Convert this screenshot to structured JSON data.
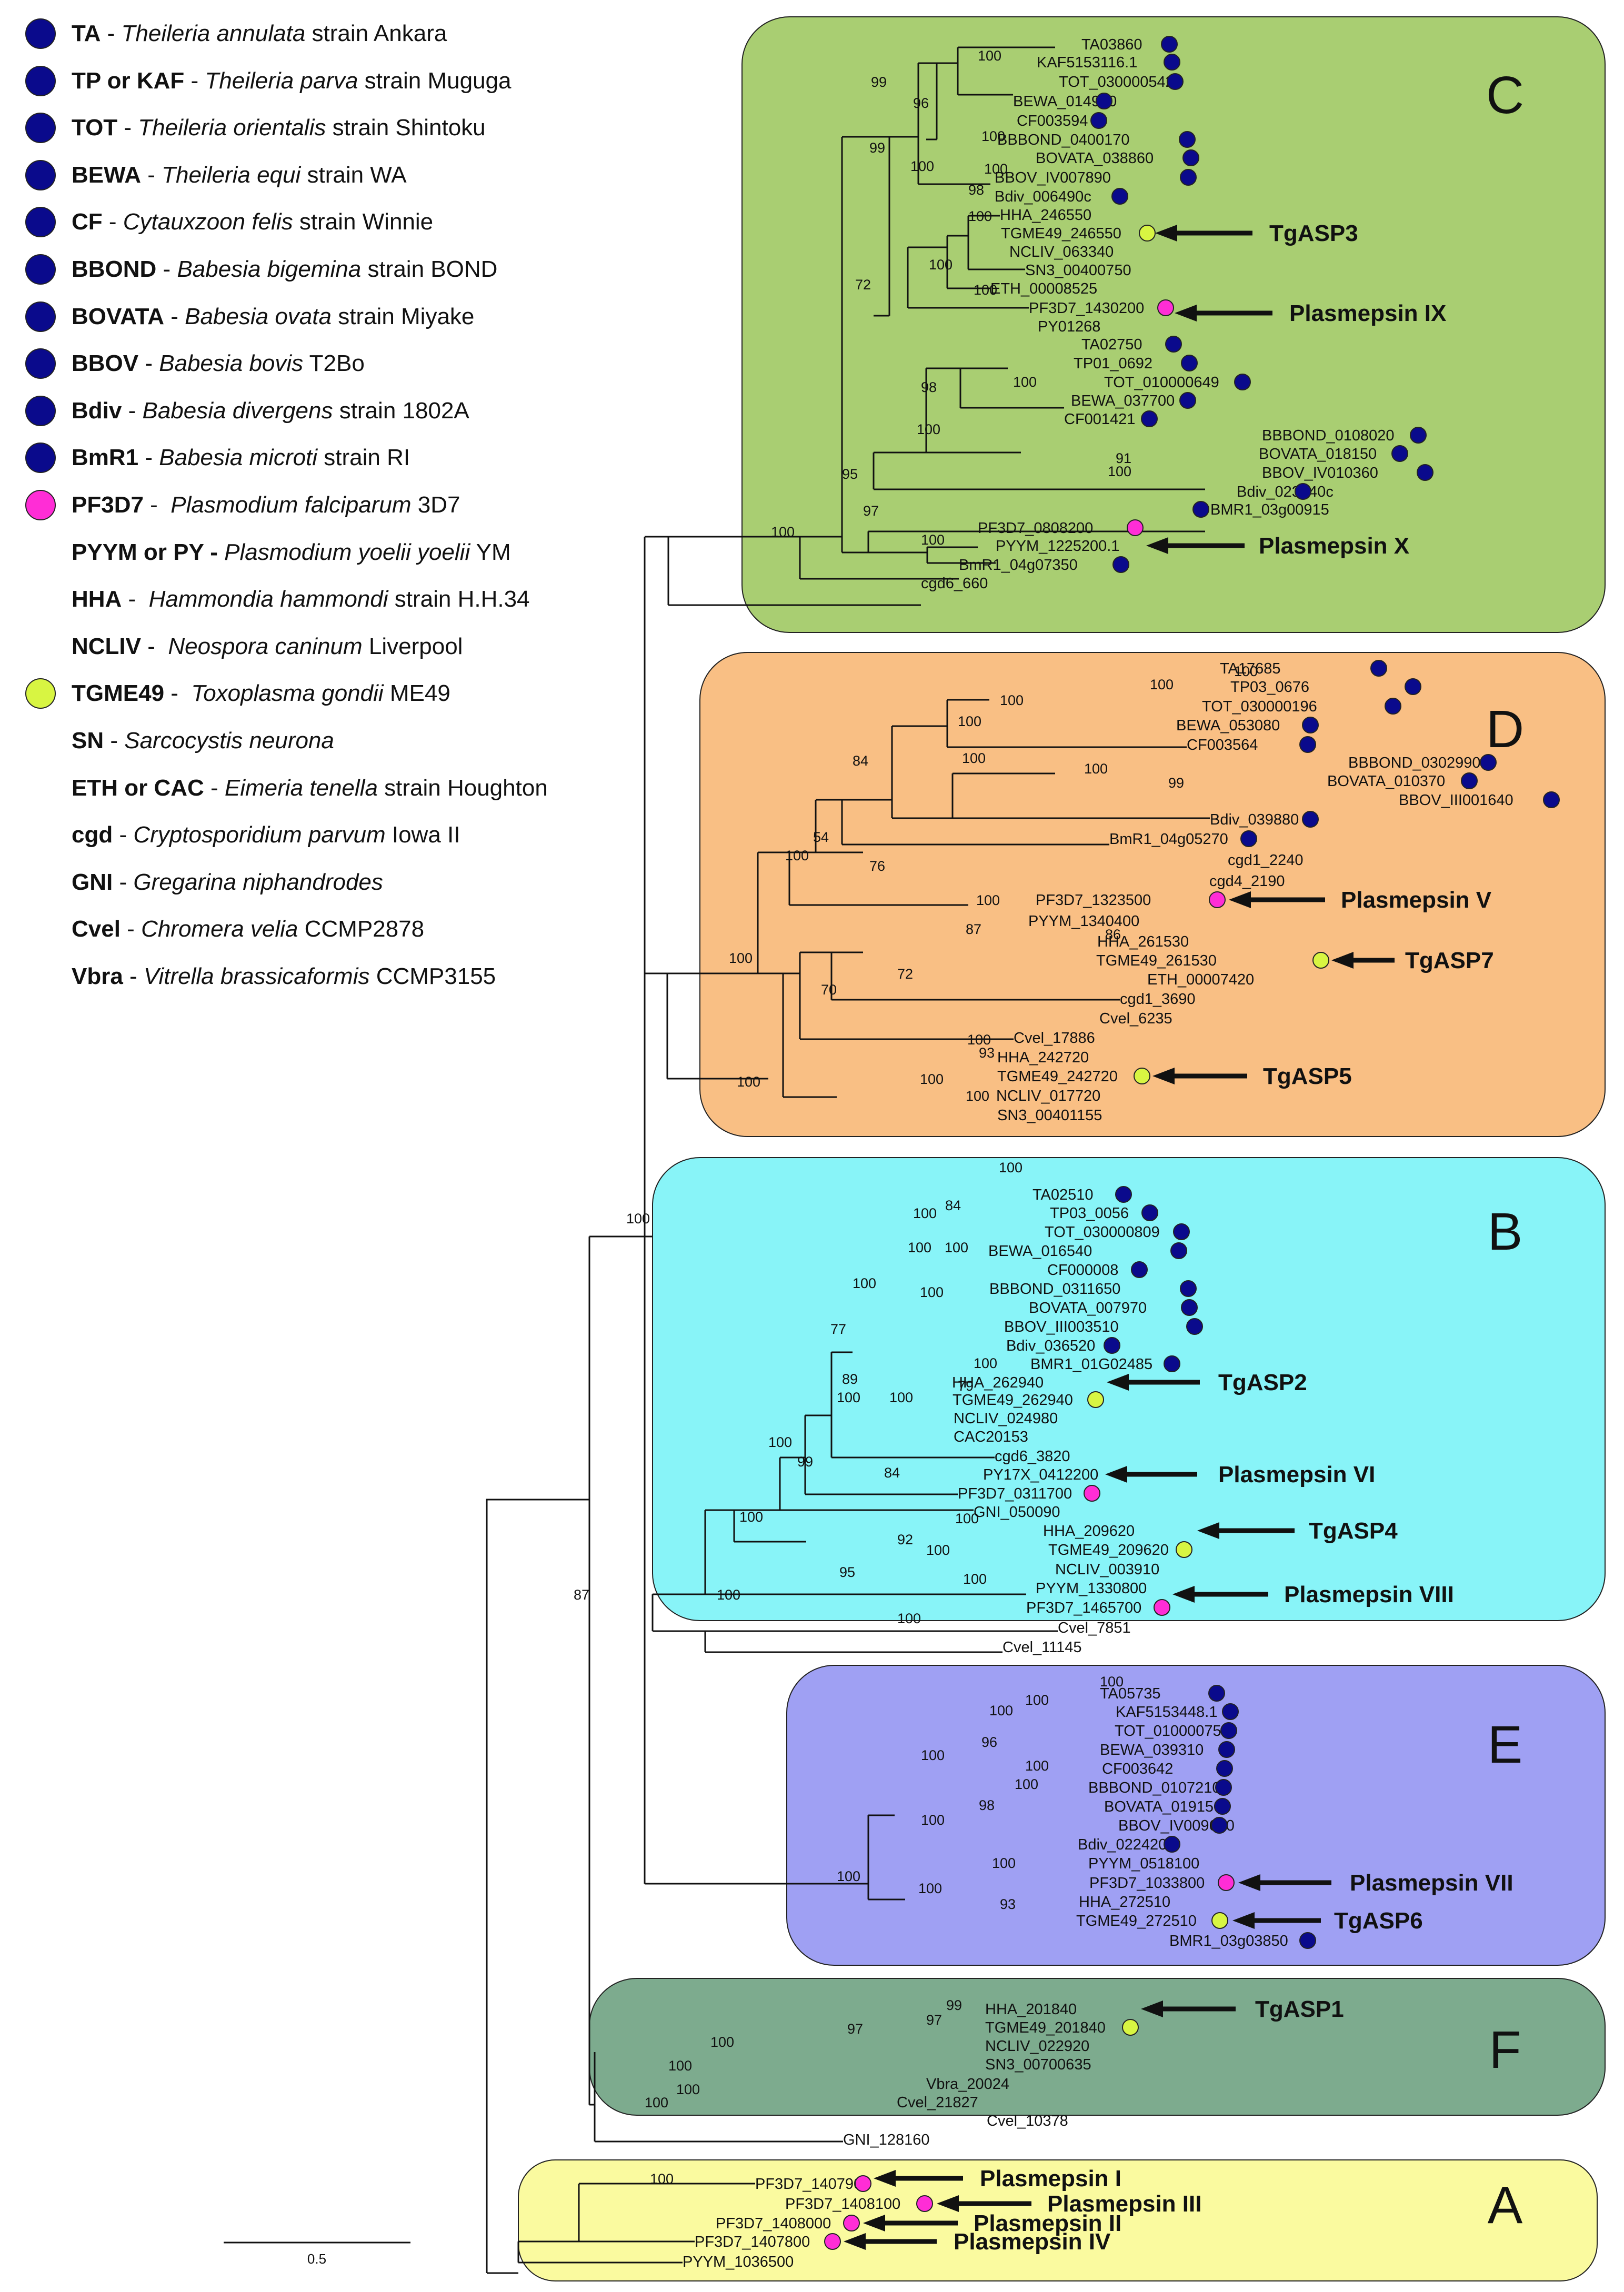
{
  "colors": {
    "navy": "#0a0a8c",
    "magenta": "#ff2dd6",
    "lime": "#d8f542",
    "clade_C": "#a9ce72",
    "clade_D": "#f9bf84",
    "clade_B": "#88f4f8",
    "clade_E": "#9fa0f3",
    "clade_F": "#7dab8e",
    "clade_A": "#fafa9f",
    "line": "#111111"
  },
  "legend": [
    {
      "code": "TA",
      "sep": " - ",
      "species": "Theileria annulata",
      "strain": " strain Ankara",
      "dot": "navy"
    },
    {
      "code": "TP or KAF",
      "sep": " - ",
      "species": "Theileria parva",
      "strain": " strain Muguga",
      "dot": "navy"
    },
    {
      "code": "TOT",
      "sep": " - ",
      "species": "Theileria orientalis",
      "strain": " strain Shintoku",
      "dot": "navy"
    },
    {
      "code": "BEWA",
      "sep": " - ",
      "species": "Theileria equi",
      "strain": " strain WA",
      "dot": "navy"
    },
    {
      "code": "CF",
      "sep": " - ",
      "species": "Cytauxzoon felis",
      "strain": " strain Winnie",
      "dot": "navy"
    },
    {
      "code": "BBOND",
      "sep": " - ",
      "species": "Babesia bigemina",
      "strain": " strain BOND",
      "dot": "navy"
    },
    {
      "code": "BOVATA",
      "sep": " - ",
      "species": "Babesia ovata",
      "strain": " strain Miyake",
      "dot": "navy"
    },
    {
      "code": "BBOV",
      "sep": " - ",
      "species": "Babesia bovis",
      "strain": " T2Bo",
      "dot": "navy"
    },
    {
      "code": "Bdiv",
      "sep": " - ",
      "species": "Babesia divergens",
      "strain": " strain 1802A",
      "dot": "navy"
    },
    {
      "code": "BmR1",
      "sep": " - ",
      "species": "Babesia microti",
      "strain": " strain RI",
      "dot": "navy"
    },
    {
      "code": "PF3D7",
      "sep": " -  ",
      "species": "Plasmodium falciparum",
      "strain": " 3D7",
      "dot": "magenta"
    },
    {
      "code": "PYYM or PY - ",
      "sep": "",
      "species": "Plasmodium yoelii yoelii",
      "strain": " YM",
      "dot": ""
    },
    {
      "code": "HHA",
      "sep": " -  ",
      "species": "Hammondia hammondi",
      "strain": " strain H.H.34",
      "dot": ""
    },
    {
      "code": "NCLIV",
      "sep": " -  ",
      "species": "Neospora caninum",
      "strain": " Liverpool",
      "dot": ""
    },
    {
      "code": "TGME49",
      "sep": " -  ",
      "species": "Toxoplasma gondii",
      "strain": " ME49",
      "dot": "lime"
    },
    {
      "code": "SN",
      "sep": " - ",
      "species": "Sarcocystis neurona",
      "strain": "",
      "dot": ""
    },
    {
      "code": "ETH or CAC",
      "sep": " - ",
      "species": "Eimeria tenella",
      "strain": " strain Houghton",
      "dot": ""
    },
    {
      "code": "cgd",
      "sep": " - ",
      "species": "Cryptosporidium parvum",
      "strain": " Iowa II",
      "dot": ""
    },
    {
      "code": "GNI",
      "sep": " - ",
      "species": "Gregarina niphandrodes",
      "strain": "",
      "dot": ""
    },
    {
      "code": "Cvel",
      "sep": " - ",
      "species": "Chromera velia",
      "strain": " CCMP2878",
      "dot": ""
    },
    {
      "code": "Vbra",
      "sep": " - ",
      "species": "Vitrella brassicaformis",
      "strain": " CCMP3155",
      "dot": ""
    }
  ],
  "clades": [
    {
      "letter": "C",
      "fill": "clade_C"
    },
    {
      "letter": "D",
      "fill": "clade_D"
    },
    {
      "letter": "B",
      "fill": "clade_B"
    },
    {
      "letter": "E",
      "fill": "clade_E"
    },
    {
      "letter": "F",
      "fill": "clade_F"
    },
    {
      "letter": "A",
      "fill": "clade_A"
    }
  ],
  "tips": {
    "C": [
      "TA03860",
      "KAF5153116.1",
      "TOT_030000542",
      "BEWA_014990",
      "CF003594",
      "BBBOND_0400170",
      "BOVATA_038860",
      "BBOV_IV007890",
      "Bdiv_006490c",
      "HHA_246550",
      "TGME49_246550",
      "NCLIV_063340",
      "SN3_00400750",
      "ETH_00008525",
      "PF3D7_1430200",
      "PY01268",
      "TA02750",
      "TP01_0692",
      "TOT_010000649",
      "BEWA_037700",
      "CF001421",
      "BBBOND_0108020",
      "BOVATA_018150",
      "BBOV_IV010360",
      "Bdiv_023140c",
      "BMR1_03g00915",
      "PF3D7_0808200",
      "PYYM_1225200.1",
      "BmR1_04g07350",
      "cgd6_660"
    ],
    "D": [
      "TA17685",
      "TP03_0676",
      "TOT_030000196",
      "BEWA_053080",
      "CF003564",
      "BBBOND_0302990",
      "BOVATA_010370",
      "BBOV_III001640",
      "Bdiv_039880",
      "BmR1_04g05270",
      "cgd1_2240",
      "cgd4_2190",
      "PF3D7_1323500",
      "PYYM_1340400",
      "HHA_261530",
      "TGME49_261530",
      "ETH_00007420",
      "cgd1_3690",
      "Cvel_6235",
      "Cvel_17886",
      "HHA_242720",
      "TGME49_242720",
      "NCLIV_017720",
      "SN3_00401155"
    ],
    "B": [
      "TA02510",
      "TP03_0056",
      "TOT_030000809",
      "BEWA_016540",
      "CF000008",
      "BBBOND_0311650",
      "BOVATA_007970",
      "BBOV_III003510",
      "Bdiv_036520",
      "BMR1_01G02485",
      "HHA_262940",
      "TGME49_262940",
      "NCLIV_024980",
      "CAC20153",
      "cgd6_3820",
      "PY17X_0412200",
      "PF3D7_0311700",
      "GNI_050090",
      "HHA_209620",
      "TGME49_209620",
      "NCLIV_003910",
      "PYYM_1330800",
      "PF3D7_1465700",
      "Cvel_7851",
      "Cvel_11145"
    ],
    "E": [
      "TA05735",
      "KAF5153448.1",
      "TOT_010000759",
      "BEWA_039310",
      "CF003642",
      "BBBOND_0107210",
      "BOVATA_019150",
      "BBOV_IV009660",
      "Bdiv_022420c",
      "PYYM_0518100",
      "PF3D7_1033800",
      "HHA_272510",
      "TGME49_272510",
      "BMR1_03g03850"
    ],
    "F": [
      "HHA_201840",
      "TGME49_201840",
      "NCLIV_022920",
      "SN3_00700635",
      "Vbra_20024",
      "Cvel_21827",
      "Cvel_10378",
      "GNI_128160"
    ],
    "A": [
      "PF3D7_1407900",
      "PF3D7_1408100",
      "PF3D7_1408000",
      "PF3D7_1407800",
      "PYYM_1036500"
    ]
  },
  "annotations": [
    "TgASP3",
    "Plasmepsin IX",
    "Plasmepsin X",
    "Plasmepsin V",
    "TgASP7",
    "TgASP5",
    "TgASP2",
    "Plasmepsin VI",
    "TgASP4",
    "Plasmepsin VIII",
    "Plasmepsin VII",
    "TgASP6",
    "TgASP1",
    "Plasmepsin I",
    "Plasmepsin III",
    "Plasmepsin II",
    "Plasmepsin IV"
  ],
  "bootstrap": [
    "100",
    "99",
    "96",
    "99",
    "100",
    "100",
    "100",
    "98",
    "100",
    "72",
    "100",
    "100",
    "100",
    "98",
    "100",
    "91",
    "100",
    "95",
    "97",
    "100",
    "100",
    "100",
    "100",
    "100",
    "100",
    "100",
    "100",
    "99",
    "84",
    "54",
    "76",
    "100",
    "100",
    "100",
    "86",
    "87",
    "72",
    "70",
    "93",
    "100",
    "100",
    "100",
    "100",
    "100",
    "84",
    "100",
    "100",
    "100",
    "100",
    "100",
    "77",
    "100",
    "79",
    "89",
    "100",
    "100",
    "100",
    "99",
    "84",
    "100",
    "92",
    "100",
    "100",
    "95",
    "100",
    "100",
    "100",
    "100",
    "100",
    "100",
    "100",
    "96",
    "100",
    "100",
    "100",
    "98",
    "100",
    "100",
    "100",
    "100",
    "93",
    "99",
    "97",
    "97",
    "100",
    "100",
    "100",
    "100",
    "87",
    "100"
  ],
  "scale_bar": "0.5"
}
